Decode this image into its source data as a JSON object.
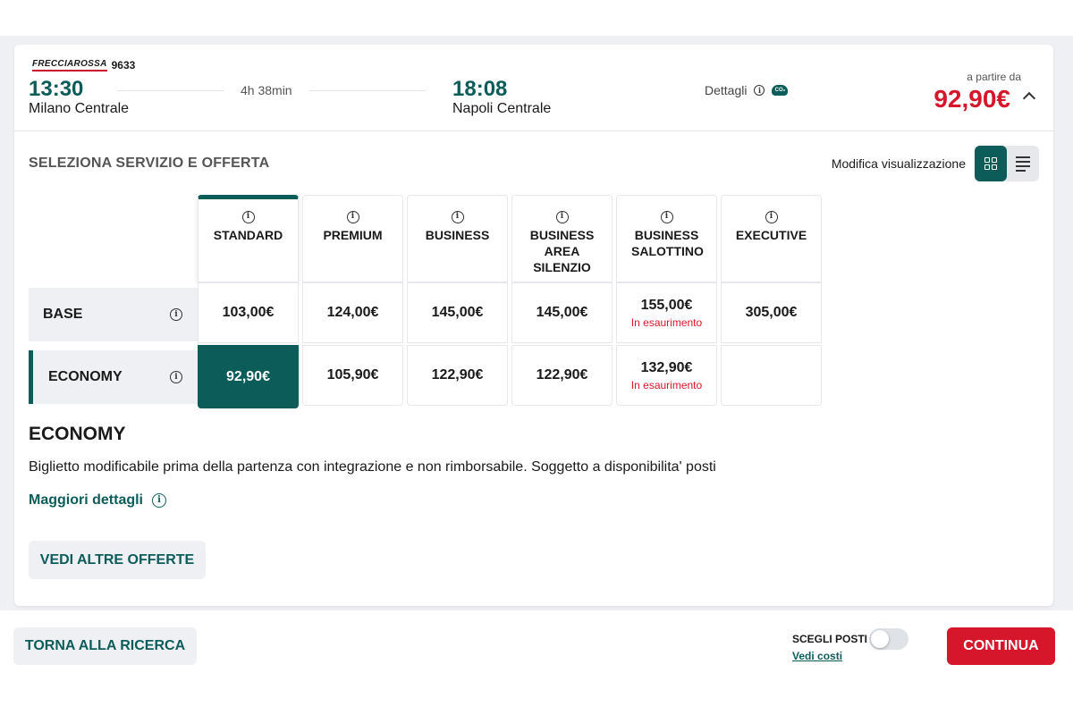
{
  "train": {
    "brand": "FRECCIAROSSA",
    "number": "9633",
    "departure_time": "13:30",
    "departure_station": "Milano Centrale",
    "duration": "4h 38min",
    "arrival_time": "18:08",
    "arrival_station": "Napoli Centrale",
    "details_label": "Dettagli",
    "co2_label": "CO₂",
    "price_prefix": "a partire da",
    "price": "92,90€"
  },
  "section": {
    "title": "SELEZIONA SERVIZIO E OFFERTA",
    "view_label": "Modifica visualizzazione"
  },
  "services": [
    {
      "label": "STANDARD"
    },
    {
      "label": "PREMIUM"
    },
    {
      "label": "BUSINESS"
    },
    {
      "label": "BUSINESS AREA SILENZIO"
    },
    {
      "label": "BUSINESS SALOTTINO"
    },
    {
      "label": "EXECUTIVE"
    }
  ],
  "offers": [
    {
      "label": "BASE",
      "prices": [
        "103,00€",
        "124,00€",
        "145,00€",
        "145,00€",
        "155,00€",
        "305,00€"
      ],
      "notes": [
        "",
        "",
        "",
        "",
        "In esaurimento",
        ""
      ]
    },
    {
      "label": "ECONOMY",
      "prices": [
        "92,90€",
        "105,90€",
        "122,90€",
        "122,90€",
        "132,90€",
        ""
      ],
      "notes": [
        "",
        "",
        "",
        "",
        "In esaurimento",
        ""
      ]
    }
  ],
  "offer_detail": {
    "title": "ECONOMY",
    "description": "Biglietto modificabile prima della partenza con integrazione e non rimborsabile. Soggetto a disponibilita' posti",
    "more_link": "Maggiori dettagli",
    "other_offers_button": "VEDI ALTRE OFFERTE"
  },
  "footer": {
    "back_button": "TORNA ALLA RICERCA",
    "seat_label": "SCEGLI POSTI",
    "seat_costs_link": "Vedi costi",
    "seat_toggle_on": false,
    "continue_button": "CONTINUA"
  },
  "colors": {
    "brand_teal": "#0c5c5a",
    "price_red": "#d6172b"
  }
}
